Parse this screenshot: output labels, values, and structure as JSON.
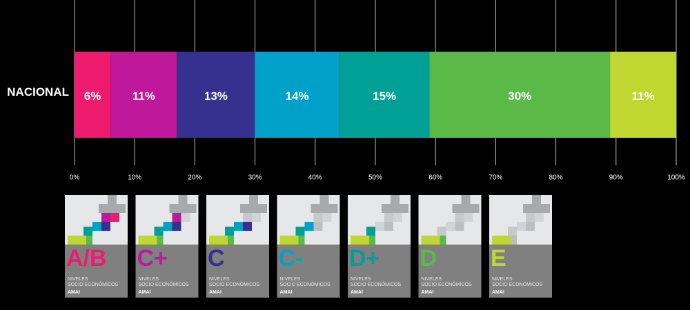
{
  "chart_data": {
    "type": "stacked-bar-horizontal",
    "categories": [
      "NACIONAL"
    ],
    "series": [
      {
        "name": "A/B",
        "color": "#ee1a6e",
        "values": [
          6
        ],
        "value_labels": [
          "6%"
        ]
      },
      {
        "name": "C+",
        "color": "#c0189a",
        "values": [
          11
        ],
        "value_labels": [
          "11%"
        ]
      },
      {
        "name": "C",
        "color": "#36318f",
        "values": [
          13
        ],
        "value_labels": [
          "13%"
        ]
      },
      {
        "name": "C-",
        "color": "#00a0c8",
        "values": [
          14
        ],
        "value_labels": [
          "14%"
        ]
      },
      {
        "name": "D+",
        "color": "#00a096",
        "values": [
          15
        ],
        "value_labels": [
          "15%"
        ]
      },
      {
        "name": "D",
        "color": "#5bba47",
        "values": [
          30
        ],
        "value_labels": [
          "30%"
        ]
      },
      {
        "name": "E",
        "color": "#bfd730",
        "values": [
          11
        ],
        "value_labels": [
          "11%"
        ]
      }
    ],
    "xlim": [
      0,
      100
    ],
    "xticks": [
      {
        "value": 0,
        "label": "0%"
      },
      {
        "value": 10,
        "label": "10%"
      },
      {
        "value": 20,
        "label": "20%"
      },
      {
        "value": 30,
        "label": "30%"
      },
      {
        "value": 40,
        "label": "40%"
      },
      {
        "value": 50,
        "label": "50%"
      },
      {
        "value": 60,
        "label": "60%"
      },
      {
        "value": 70,
        "label": "70%"
      },
      {
        "value": 80,
        "label": "80%"
      },
      {
        "value": 90,
        "label": "90%"
      },
      {
        "value": 100,
        "label": "100%"
      }
    ],
    "grid": true,
    "legend_card_text": [
      "NIVELES",
      "SOCIO ECONÓMICOS",
      "AMAI"
    ]
  }
}
